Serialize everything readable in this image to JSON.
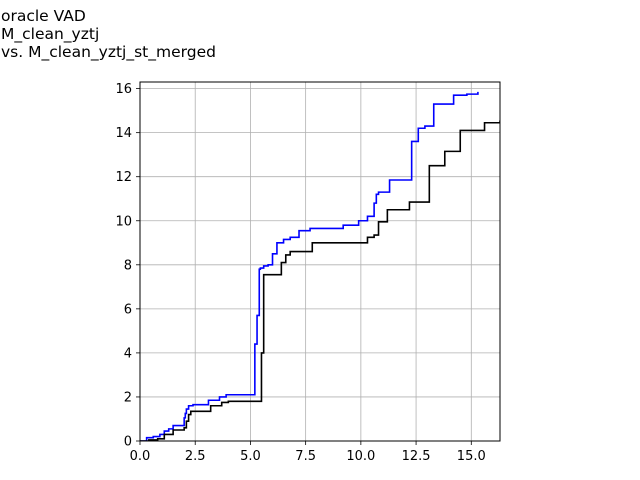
{
  "title_lines": [
    "oracle VAD",
    "M_clean_yztj",
    "vs. M_clean_yztj_st_merged"
  ],
  "chart_data": {
    "type": "line",
    "title": "oracle VAD\nM_clean_yztj\nvs. M_clean_yztj_st_merged",
    "xlabel": "",
    "ylabel": "",
    "xlim": [
      0,
      16.3
    ],
    "ylim": [
      0,
      16.3
    ],
    "grid": true,
    "x_ticks": [
      0.0,
      2.5,
      5.0,
      7.5,
      10.0,
      12.5,
      15.0
    ],
    "x_tick_labels": [
      "0.0",
      "2.5",
      "5.0",
      "7.5",
      "10.0",
      "12.5",
      "15.0"
    ],
    "y_ticks": [
      0,
      2,
      4,
      6,
      8,
      10,
      12,
      14,
      16
    ],
    "y_tick_labels": [
      "0",
      "2",
      "4",
      "6",
      "8",
      "10",
      "12",
      "14",
      "16"
    ],
    "series": [
      {
        "color": "#0000ff",
        "step": true,
        "x": [
          0,
          0.3,
          0.6,
          0.9,
          1.1,
          1.3,
          1.5,
          2.0,
          2.05,
          2.1,
          2.2,
          2.4,
          3.1,
          3.6,
          3.9,
          5.2,
          5.3,
          5.4,
          5.45,
          5.6,
          5.8,
          6.0,
          6.2,
          6.5,
          6.8,
          7.2,
          7.7,
          9.2,
          9.9,
          10.3,
          10.6,
          10.7,
          10.8,
          11.3,
          12.3,
          12.6,
          12.9,
          13.3,
          14.2,
          14.8,
          15.3
        ],
        "y": [
          0,
          0.15,
          0.2,
          0.3,
          0.45,
          0.55,
          0.7,
          1.05,
          1.25,
          1.45,
          1.6,
          1.65,
          1.85,
          2.0,
          2.1,
          4.4,
          5.7,
          7.8,
          7.85,
          7.95,
          8.0,
          8.5,
          9.0,
          9.15,
          9.25,
          9.55,
          9.65,
          9.8,
          10.0,
          10.2,
          10.8,
          11.2,
          11.3,
          11.85,
          13.6,
          14.2,
          14.3,
          15.3,
          15.7,
          15.75,
          15.85
        ]
      },
      {
        "color": "#000000",
        "step": true,
        "x": [
          0,
          0.4,
          0.8,
          1.1,
          1.5,
          2.0,
          2.1,
          2.2,
          2.3,
          3.2,
          3.7,
          4.0,
          5.5,
          5.6,
          6.4,
          6.6,
          6.8,
          7.8,
          10.3,
          10.6,
          10.8,
          11.2,
          11.3,
          12.2,
          13.1,
          13.8,
          14.5,
          15.6,
          16.3
        ],
        "y": [
          0,
          0.05,
          0.1,
          0.3,
          0.5,
          0.6,
          0.9,
          1.2,
          1.35,
          1.6,
          1.75,
          1.8,
          4.0,
          7.55,
          8.1,
          8.45,
          8.6,
          9.0,
          9.25,
          9.35,
          9.95,
          10.5,
          10.5,
          10.85,
          12.5,
          13.15,
          14.1,
          14.45,
          14.55
        ]
      }
    ]
  }
}
